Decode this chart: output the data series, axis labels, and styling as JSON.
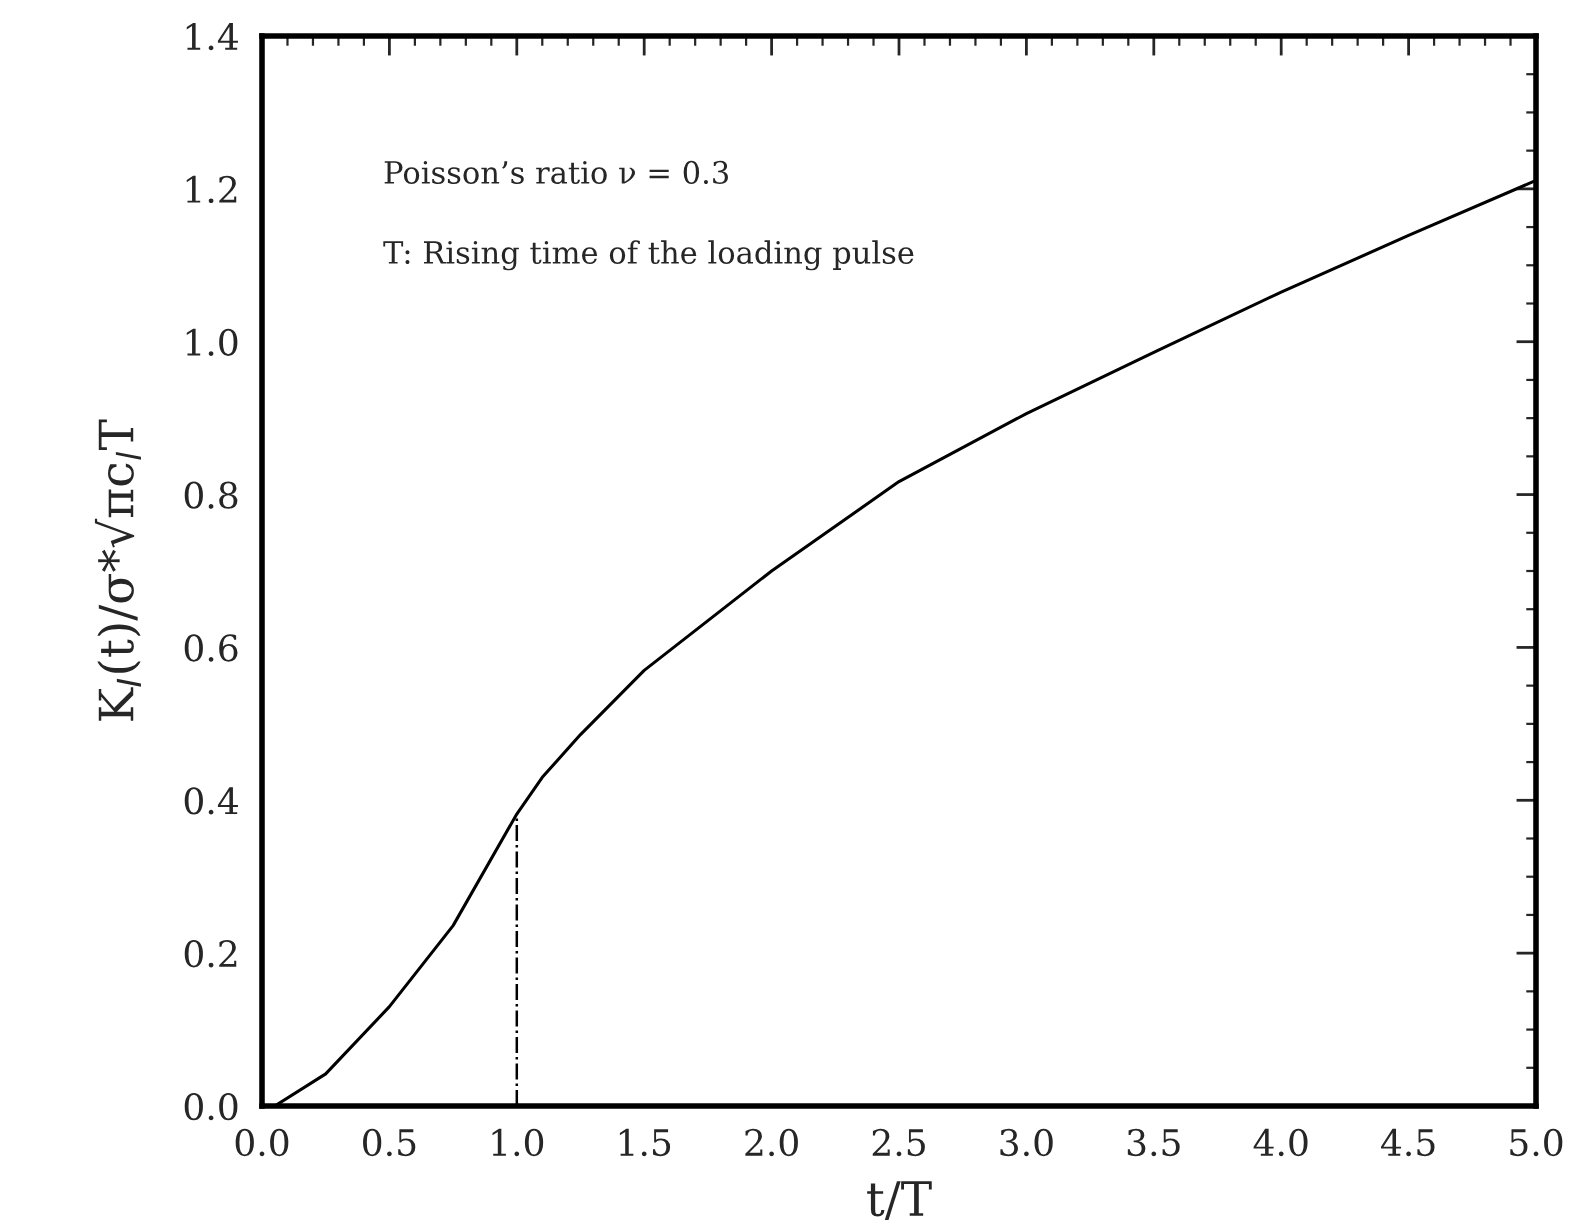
{
  "chart_data": {
    "type": "line",
    "xlabel": "t/T",
    "ylabel": "K$_{I}$(t)/σ*√πc$_{l}$T",
    "x": [
      0.05,
      0.25,
      0.5,
      0.75,
      1.0,
      1.1,
      1.25,
      1.5,
      2.0,
      2.5,
      3.0,
      3.5,
      4.0,
      4.5,
      5.0
    ],
    "series": [
      {
        "color": "#000000",
        "values": [
          0.0,
          0.042,
          0.13,
          0.236,
          0.382,
          0.43,
          0.486,
          0.57,
          0.7,
          0.817,
          0.906,
          0.986,
          1.065,
          1.139,
          1.211
        ]
      }
    ],
    "xlim": [
      0,
      5
    ],
    "ylim": [
      0,
      1.4
    ],
    "xticks": [
      {
        "value": 0,
        "label": "0.0"
      },
      {
        "value": 0.5,
        "label": "0.5"
      },
      {
        "value": 1,
        "label": "1.0"
      },
      {
        "value": 1.5,
        "label": "1.5"
      },
      {
        "value": 2,
        "label": "2.0"
      },
      {
        "value": 2.5,
        "label": "2.5"
      },
      {
        "value": 3,
        "label": "3.0"
      },
      {
        "value": 3.5,
        "label": "3.5"
      },
      {
        "value": 4,
        "label": "4.0"
      },
      {
        "value": 4.5,
        "label": "4.5"
      },
      {
        "value": 5,
        "label": "5.0"
      }
    ],
    "yticks": [
      {
        "value": 0,
        "label": "0.0"
      },
      {
        "value": 0.2,
        "label": "0.2"
      },
      {
        "value": 0.4,
        "label": "0.4"
      },
      {
        "value": 0.6,
        "label": "0.6"
      },
      {
        "value": 0.8,
        "label": "0.8"
      },
      {
        "value": 1,
        "label": "1.0"
      },
      {
        "value": 1.2,
        "label": "1.2"
      },
      {
        "value": 1.4,
        "label": "1.4"
      }
    ],
    "ref_lines": [
      {
        "axis": "x",
        "value": 1.0,
        "line_style": "dashdot",
        "color": "#000000"
      }
    ],
    "annotations": [
      "Poisson’s ratio ν = 0.3",
      "T: Rising time of the loading pulse"
    ],
    "grid": false,
    "legend": false,
    "marker": "none",
    "line_style": "solid"
  }
}
